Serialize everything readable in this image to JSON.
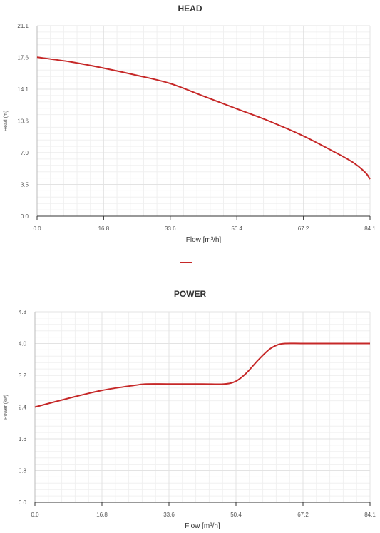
{
  "colors": {
    "series": "#c62828",
    "grid_major": "#e3e3e3",
    "grid_minor": "#f0f0f0",
    "axis": "#333333"
  },
  "chart_data": [
    {
      "type": "line",
      "title": "HEAD",
      "xlabel": "Flow [m³/h]",
      "ylabel": "Head (m)",
      "xlim": [
        0,
        84.1
      ],
      "ylim": [
        0,
        21.1
      ],
      "x_ticks": [
        "0.0",
        "16.8",
        "33.6",
        "50.4",
        "67.2",
        "84.1"
      ],
      "y_ticks": [
        "0.0",
        "3.5",
        "7.0",
        "10.6",
        "14.1",
        "17.6",
        "21.1"
      ],
      "grid": true,
      "series": [
        {
          "x": [
            0,
            8.4,
            16.8,
            25.2,
            33.6,
            42.0,
            50.4,
            58.8,
            67.2,
            75.6,
            80.0,
            83.0,
            84.1
          ],
          "y": [
            17.6,
            17.1,
            16.4,
            15.6,
            14.7,
            13.3,
            11.9,
            10.5,
            8.9,
            7.0,
            5.9,
            4.8,
            4.1
          ]
        }
      ]
    },
    {
      "type": "line",
      "title": "POWER",
      "xlabel": "Flow [m³/h]",
      "ylabel": "Power (kw)",
      "xlim": [
        0,
        84.1
      ],
      "ylim": [
        0,
        4.8
      ],
      "x_ticks": [
        "0.0",
        "16.8",
        "33.6",
        "50.4",
        "67.2",
        "84.1"
      ],
      "y_ticks": [
        "0.0",
        "0.8",
        "1.6",
        "2.4",
        "3.2",
        "4.0",
        "4.8"
      ],
      "grid": true,
      "series": [
        {
          "x": [
            0,
            8.4,
            16.8,
            25.2,
            28.0,
            33.6,
            42.0,
            47.5,
            50.4,
            53.0,
            56.0,
            58.8,
            61.0,
            63.0,
            67.2,
            75.6,
            84.1
          ],
          "y": [
            2.4,
            2.62,
            2.82,
            2.95,
            2.98,
            2.98,
            2.98,
            2.98,
            3.05,
            3.25,
            3.58,
            3.85,
            3.97,
            4.0,
            4.0,
            4.0,
            4.0
          ]
        }
      ]
    }
  ]
}
